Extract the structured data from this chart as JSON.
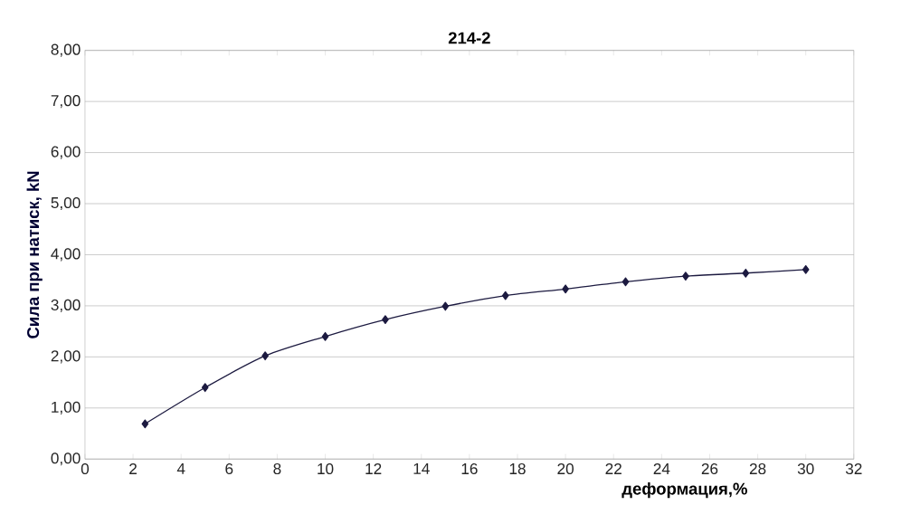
{
  "chart_data": {
    "type": "line",
    "title": "214-2",
    "xlabel": "деформация,%",
    "ylabel": "Сила при натиск, kN",
    "x": [
      2.5,
      5,
      7.5,
      10,
      12.5,
      15,
      17.5,
      20,
      22.5,
      25,
      27.5,
      30
    ],
    "series": [
      {
        "color": "#1c1a40",
        "values": [
          0.69,
          1.4,
          2.02,
          2.4,
          2.73,
          2.99,
          3.2,
          3.33,
          3.47,
          3.58,
          3.64,
          3.71
        ]
      }
    ],
    "xlim": [
      0,
      32
    ],
    "xticks": [
      0,
      2,
      4,
      6,
      8,
      10,
      12,
      14,
      16,
      18,
      20,
      22,
      24,
      26,
      28,
      30,
      32
    ],
    "ylim": [
      0,
      8
    ],
    "yticks": [
      {
        "value": 0,
        "label": "0,00"
      },
      {
        "value": 1,
        "label": "1,00"
      },
      {
        "value": 2,
        "label": "2,00"
      },
      {
        "value": 3,
        "label": "3,00"
      },
      {
        "value": 4,
        "label": "4,00"
      },
      {
        "value": 5,
        "label": "5,00"
      },
      {
        "value": 6,
        "label": "6,00"
      },
      {
        "value": 7,
        "label": "7,00"
      },
      {
        "value": 8,
        "label": "8,00"
      }
    ],
    "grid": "y",
    "marker": "diamond",
    "line_style": "solid"
  }
}
